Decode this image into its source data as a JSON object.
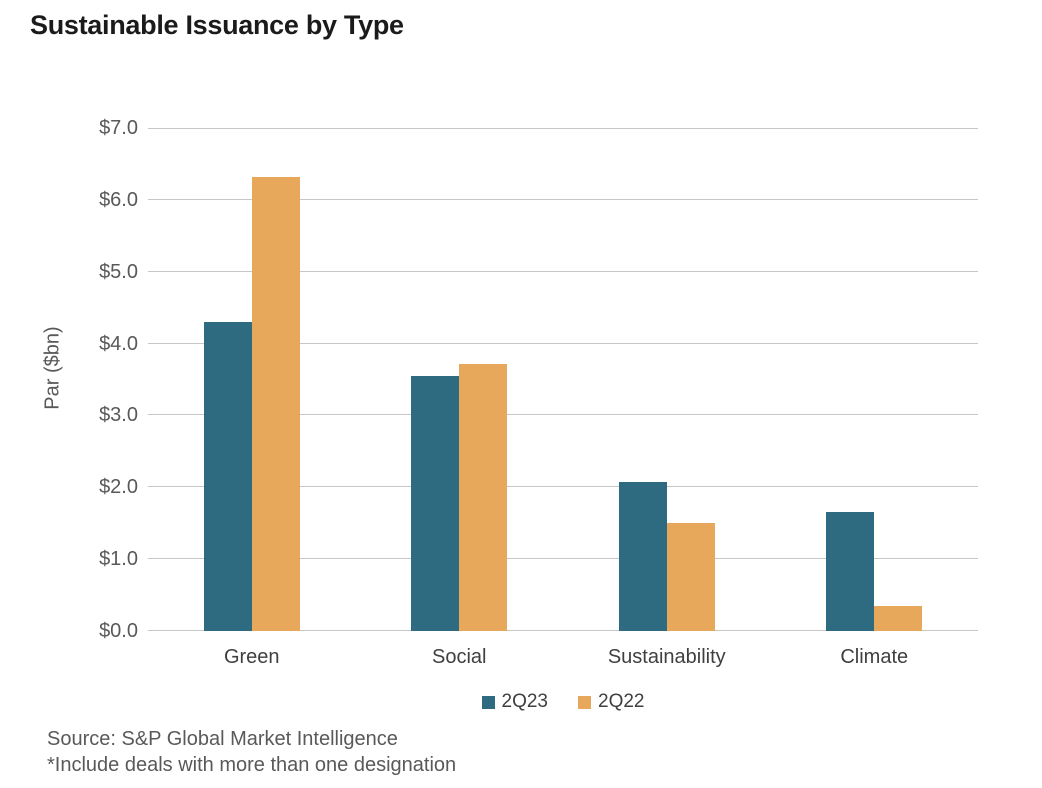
{
  "title": "Sustainable Issuance by Type",
  "chart_data": {
    "type": "bar",
    "title": "Sustainable Issuance by Type",
    "xlabel": "",
    "ylabel": "Par ($bn)",
    "ylim": [
      0,
      7
    ],
    "ytick_labels": [
      "$0.0",
      "$1.0",
      "$2.0",
      "$3.0",
      "$4.0",
      "$5.0",
      "$6.0",
      "$7.0"
    ],
    "grid": "horizontal",
    "legend_position": "bottom-center",
    "categories": [
      "Green",
      "Social",
      "Sustainability",
      "Climate"
    ],
    "series": [
      {
        "name": "2Q23",
        "color": "#2E6B80",
        "values": [
          4.3,
          3.55,
          2.08,
          1.66
        ]
      },
      {
        "name": "2Q22",
        "color": "#E7A85C",
        "values": [
          6.32,
          3.72,
          1.5,
          0.35
        ]
      }
    ]
  },
  "footer": {
    "source": "Source: S&P Global Market Intelligence",
    "note": "*Include deals with more than one designation"
  }
}
